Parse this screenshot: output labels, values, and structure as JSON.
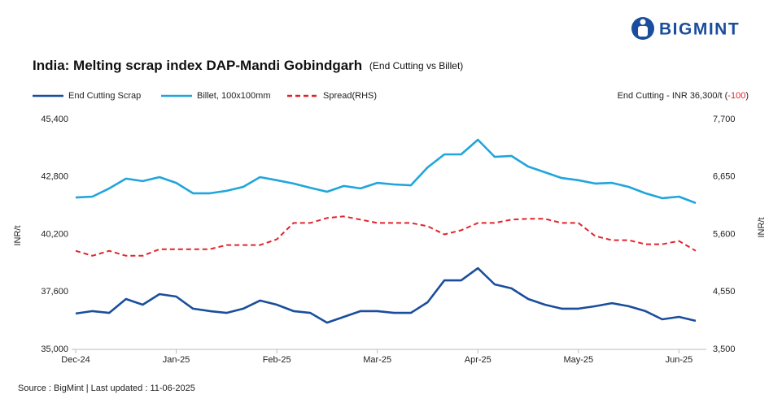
{
  "logo": "BIGMINT",
  "chart_data": {
    "type": "line",
    "title": "India: Melting scrap index DAP-Mandi Gobindgarh",
    "subtitle": "(End Cutting  vs Billet)",
    "annotation": {
      "prefix": "End Cutting - INR 36,300/t (",
      "change": "-100",
      "suffix": ")"
    },
    "source": "Source : BigMint | Last updated : 11-06-2025",
    "y_label": "INR/t",
    "y2_label": "INR/t",
    "categories": [
      "Dec-24",
      null,
      null,
      null,
      null,
      null,
      "Jan-25",
      null,
      null,
      null,
      null,
      null,
      "Feb-25",
      null,
      null,
      null,
      null,
      null,
      "Mar-25",
      null,
      null,
      null,
      null,
      null,
      "Apr-25",
      null,
      null,
      null,
      null,
      null,
      "May-25",
      null,
      null,
      null,
      null,
      null,
      "Jun-25",
      null
    ],
    "ylim": [
      35000,
      45400
    ],
    "yticks": [
      {
        "value": 35000,
        "label": "35,000"
      },
      {
        "value": 37600,
        "label": "37,600"
      },
      {
        "value": 40200,
        "label": "40,200"
      },
      {
        "value": 42800,
        "label": "42,800"
      },
      {
        "value": 45400,
        "label": "45,400"
      }
    ],
    "y2lim": [
      3500,
      7700
    ],
    "y2ticks": [
      {
        "value": 3500,
        "label": "3,500"
      },
      {
        "value": 4550,
        "label": "4,550"
      },
      {
        "value": 5600,
        "label": "5,600"
      },
      {
        "value": 6650,
        "label": "6,650"
      },
      {
        "value": 7700,
        "label": "7,700"
      }
    ],
    "grid": false,
    "series": [
      {
        "name": "End Cutting Scrap",
        "color": "#1a4e9c",
        "style": "solid",
        "values": [
          36620,
          36730,
          36650,
          37280,
          37020,
          37500,
          37390,
          36840,
          36730,
          36650,
          36840,
          37210,
          37020,
          36730,
          36650,
          36210,
          36470,
          36730,
          36730,
          36650,
          36650,
          37130,
          38120,
          38120,
          38670,
          37940,
          37760,
          37280,
          37020,
          36840,
          36840,
          36950,
          37090,
          36950,
          36730,
          36360,
          36470,
          36290
        ]
      },
      {
        "name": "Billet, 100x100mm",
        "color": "#20a5dc",
        "style": "solid",
        "values": [
          41870,
          41910,
          42280,
          42720,
          42610,
          42790,
          42530,
          42060,
          42060,
          42170,
          42350,
          42790,
          42650,
          42500,
          42310,
          42130,
          42390,
          42280,
          42530,
          42460,
          42420,
          43230,
          43820,
          43820,
          44480,
          43710,
          43750,
          43270,
          43010,
          42750,
          42650,
          42500,
          42530,
          42350,
          42060,
          41840,
          41910,
          41620
        ]
      },
      {
        "name": "Spread(RHS)",
        "color": "#e0242b",
        "style": "dashed",
        "axis": "y2",
        "values": [
          5300,
          5210,
          5300,
          5210,
          5210,
          5330,
          5330,
          5330,
          5330,
          5405,
          5405,
          5405,
          5510,
          5810,
          5810,
          5900,
          5930,
          5870,
          5810,
          5810,
          5810,
          5750,
          5600,
          5675,
          5810,
          5810,
          5870,
          5885,
          5885,
          5810,
          5810,
          5570,
          5495,
          5495,
          5420,
          5420,
          5480,
          5300
        ]
      }
    ]
  }
}
